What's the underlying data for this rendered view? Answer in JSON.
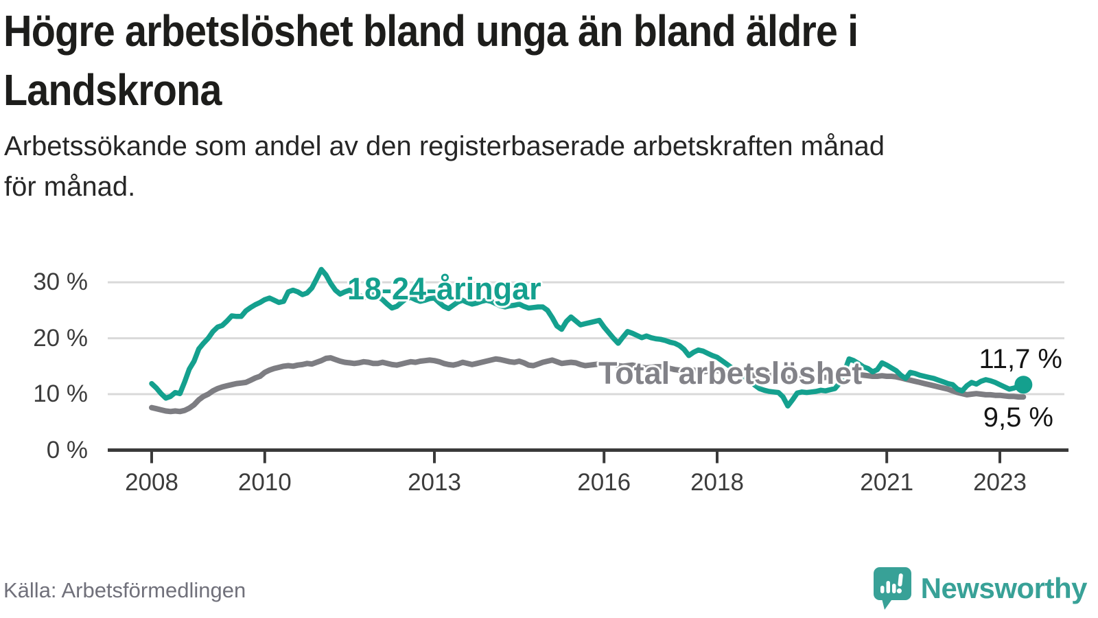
{
  "header": {
    "title_line1": "Högre arbetslöshet bland unga än bland äldre i",
    "title_line2": "Landskrona",
    "subtitle_line1": "Arbetssökande som andel av den registerbaserade arbetskraften månad",
    "subtitle_line2": "för månad."
  },
  "footer": {
    "source": "Källa: Arbetsförmedlingen",
    "brand": "Newsworthy"
  },
  "chart_data": {
    "type": "line",
    "unit": "%",
    "frequency": "monthly",
    "x_range": [
      "2008-01",
      "2023-06"
    ],
    "ylim": [
      0,
      33
    ],
    "grid": true,
    "x_ticks": [
      2008,
      2010,
      2013,
      2016,
      2018,
      2021,
      2023
    ],
    "x_tick_labels": [
      "2008",
      "2010",
      "2013",
      "2016",
      "2018",
      "2021",
      "2023"
    ],
    "y_ticks": [
      0,
      10,
      20,
      30
    ],
    "y_tick_labels": [
      "0 %",
      "10 %",
      "20 %",
      "30 %"
    ],
    "colors": {
      "youth": "#14a08e",
      "total": "#7d7d82",
      "grid": "#d9d9d9",
      "axis": "#3a3a3a",
      "brand_teal": "#38a197"
    },
    "series": [
      {
        "name": "18-24-åringar",
        "color": "#14a08e",
        "end_label": "11,7 %",
        "end_value": 11.7,
        "values": [
          11.9,
          11.1,
          10.1,
          9.3,
          9.6,
          10.3,
          10.1,
          12.2,
          14.5,
          15.9,
          18.1,
          19.1,
          20.0,
          21.2,
          22.0,
          22.3,
          23.1,
          24.0,
          23.9,
          23.9,
          24.9,
          25.5,
          26.0,
          26.4,
          26.9,
          27.2,
          26.8,
          26.4,
          26.6,
          28.3,
          28.6,
          28.3,
          27.8,
          28.1,
          29.0,
          30.6,
          32.3,
          31.3,
          29.8,
          28.6,
          27.9,
          28.3,
          28.6,
          28.2,
          27.7,
          27.3,
          27.5,
          27.8,
          27.5,
          26.9,
          26.1,
          25.4,
          25.7,
          26.4,
          27.1,
          27.3,
          26.9,
          26.6,
          26.8,
          27.1,
          27.2,
          26.4,
          25.7,
          25.3,
          25.9,
          26.5,
          26.8,
          26.4,
          26.1,
          26.3,
          26.6,
          26.8,
          26.6,
          26.2,
          25.8,
          25.6,
          25.8,
          25.9,
          26.1,
          25.7,
          25.4,
          25.5,
          25.6,
          25.6,
          25.0,
          23.7,
          22.2,
          21.6,
          23.0,
          23.8,
          23.1,
          22.4,
          22.6,
          22.8,
          23.0,
          23.2,
          22.0,
          21.0,
          20.0,
          19.1,
          20.2,
          21.2,
          20.9,
          20.5,
          20.1,
          20.4,
          20.1,
          19.9,
          19.8,
          19.6,
          19.3,
          19.1,
          18.7,
          18.0,
          16.9,
          17.5,
          17.9,
          17.7,
          17.3,
          16.9,
          16.6,
          16.0,
          15.4,
          14.8,
          14.2,
          13.6,
          13.0,
          12.3,
          11.6,
          11.0,
          10.7,
          10.5,
          10.4,
          10.3,
          9.5,
          7.9,
          9.0,
          10.2,
          10.4,
          10.3,
          10.4,
          10.5,
          10.7,
          10.6,
          10.8,
          11.0,
          12.0,
          14.0,
          16.3,
          16.0,
          15.5,
          14.9,
          14.6,
          14.0,
          14.4,
          15.6,
          15.2,
          14.7,
          14.2,
          13.4,
          12.8,
          13.9,
          13.7,
          13.4,
          13.2,
          13.0,
          12.8,
          12.5,
          12.2,
          11.9,
          11.7,
          10.9,
          10.6,
          11.5,
          12.1,
          11.8,
          12.3,
          12.6,
          12.4,
          12.1,
          11.7,
          11.3,
          10.9,
          11.1,
          11.4,
          11.7
        ]
      },
      {
        "name": "Total arbetslöshet",
        "color": "#7d7d82",
        "end_label": "9,5 %",
        "end_value": 9.5,
        "values": [
          7.6,
          7.4,
          7.2,
          7.0,
          6.9,
          7.0,
          6.9,
          7.1,
          7.5,
          8.1,
          9.0,
          9.6,
          10.0,
          10.6,
          11.0,
          11.3,
          11.5,
          11.7,
          11.9,
          12.0,
          12.1,
          12.5,
          12.9,
          13.2,
          13.9,
          14.3,
          14.6,
          14.8,
          15.0,
          15.1,
          15.0,
          15.2,
          15.3,
          15.5,
          15.4,
          15.7,
          16.0,
          16.4,
          16.5,
          16.2,
          15.9,
          15.7,
          15.6,
          15.5,
          15.6,
          15.8,
          15.7,
          15.5,
          15.5,
          15.7,
          15.5,
          15.3,
          15.2,
          15.4,
          15.6,
          15.8,
          15.7,
          15.9,
          16.0,
          16.1,
          16.0,
          15.8,
          15.5,
          15.3,
          15.2,
          15.4,
          15.7,
          15.5,
          15.3,
          15.5,
          15.7,
          15.9,
          16.1,
          16.3,
          16.2,
          16.0,
          15.8,
          15.7,
          15.9,
          15.6,
          15.2,
          15.1,
          15.4,
          15.7,
          15.9,
          16.1,
          15.8,
          15.5,
          15.6,
          15.7,
          15.6,
          15.3,
          15.1,
          15.2,
          15.3,
          15.4,
          15.4,
          15.5,
          15.3,
          15.1,
          15.0,
          15.1,
          15.2,
          15.0,
          14.8,
          14.7,
          14.8,
          14.9,
          14.9,
          14.8,
          14.6,
          14.4,
          14.3,
          14.4,
          14.5,
          14.3,
          14.1,
          14.0,
          14.1,
          14.2,
          14.2,
          14.0,
          13.8,
          13.6,
          13.5,
          13.6,
          13.7,
          13.5,
          13.3,
          13.2,
          13.3,
          13.4,
          13.4,
          13.2,
          13.0,
          12.9,
          12.8,
          12.9,
          13.0,
          12.9,
          12.8,
          12.8,
          12.9,
          13.0,
          13.1,
          13.2,
          13.4,
          13.6,
          13.7,
          13.6,
          13.5,
          13.4,
          13.3,
          13.2,
          13.2,
          13.3,
          13.2,
          13.2,
          13.1,
          12.9,
          12.7,
          12.5,
          12.3,
          12.1,
          11.9,
          11.7,
          11.5,
          11.3,
          11.1,
          10.9,
          10.6,
          10.3,
          10.1,
          9.9,
          10.0,
          10.1,
          10.0,
          9.9,
          9.9,
          9.8,
          9.8,
          9.7,
          9.6,
          9.6,
          9.5,
          9.5
        ]
      }
    ]
  }
}
